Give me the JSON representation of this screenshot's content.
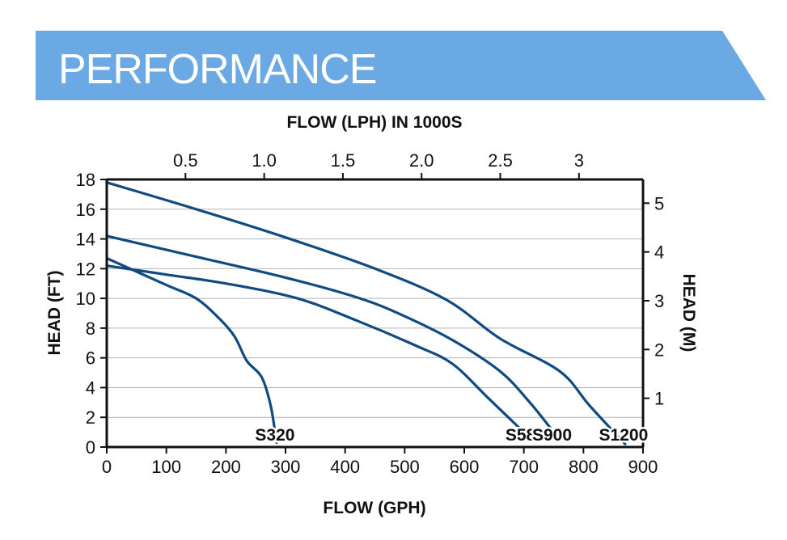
{
  "banner": {
    "title": "PERFORMANCE",
    "color": "#6aa9e3"
  },
  "chart_data": {
    "type": "line",
    "line_color": "#0f4a80",
    "grid": true,
    "bottom_axis": {
      "title": "FLOW (GPH)",
      "range": [
        0,
        900
      ],
      "ticks": [
        0,
        100,
        200,
        300,
        400,
        500,
        600,
        700,
        800,
        900
      ]
    },
    "top_axis": {
      "title": "FLOW (LPH) IN 1000S",
      "range": [
        0,
        3.4068
      ],
      "ticks": [
        "0.5",
        "1.0",
        "1.5",
        "2.0",
        "2.5",
        "3"
      ]
    },
    "left_axis": {
      "title": "HEAD (FT)",
      "range": [
        0,
        18
      ],
      "ticks": [
        0,
        2,
        4,
        6,
        8,
        10,
        12,
        14,
        16,
        18
      ]
    },
    "right_axis": {
      "title": "HEAD (M)",
      "range": [
        0,
        5.486
      ],
      "ticks": [
        1,
        2,
        3,
        4,
        5
      ]
    },
    "series": [
      {
        "name": "S320",
        "points": [
          [
            0,
            12.7
          ],
          [
            50,
            11.8
          ],
          [
            100,
            10.9
          ],
          [
            150,
            10.0
          ],
          [
            190,
            8.6
          ],
          [
            215,
            7.4
          ],
          [
            235,
            5.8
          ],
          [
            260,
            4.7
          ],
          [
            275,
            2.8
          ],
          [
            285,
            0.3
          ]
        ]
      },
      {
        "name": "S580",
        "points": [
          [
            0,
            12.2
          ],
          [
            100,
            11.6
          ],
          [
            200,
            11.0
          ],
          [
            320,
            10.0
          ],
          [
            420,
            8.5
          ],
          [
            520,
            6.8
          ],
          [
            580,
            5.6
          ],
          [
            640,
            3.3
          ],
          [
            705,
            0.8
          ]
        ]
      },
      {
        "name": "S900",
        "points": [
          [
            0,
            14.2
          ],
          [
            150,
            12.8
          ],
          [
            300,
            11.4
          ],
          [
            425,
            10.0
          ],
          [
            500,
            8.8
          ],
          [
            580,
            7.2
          ],
          [
            660,
            5.1
          ],
          [
            710,
            3.0
          ],
          [
            750,
            1.0
          ]
        ]
      },
      {
        "name": "S1200",
        "points": [
          [
            0,
            17.8
          ],
          [
            150,
            16.0
          ],
          [
            300,
            14.1
          ],
          [
            450,
            12.0
          ],
          [
            570,
            9.9
          ],
          [
            660,
            7.3
          ],
          [
            760,
            5.1
          ],
          [
            810,
            2.8
          ],
          [
            870,
            0.2
          ]
        ]
      }
    ]
  }
}
